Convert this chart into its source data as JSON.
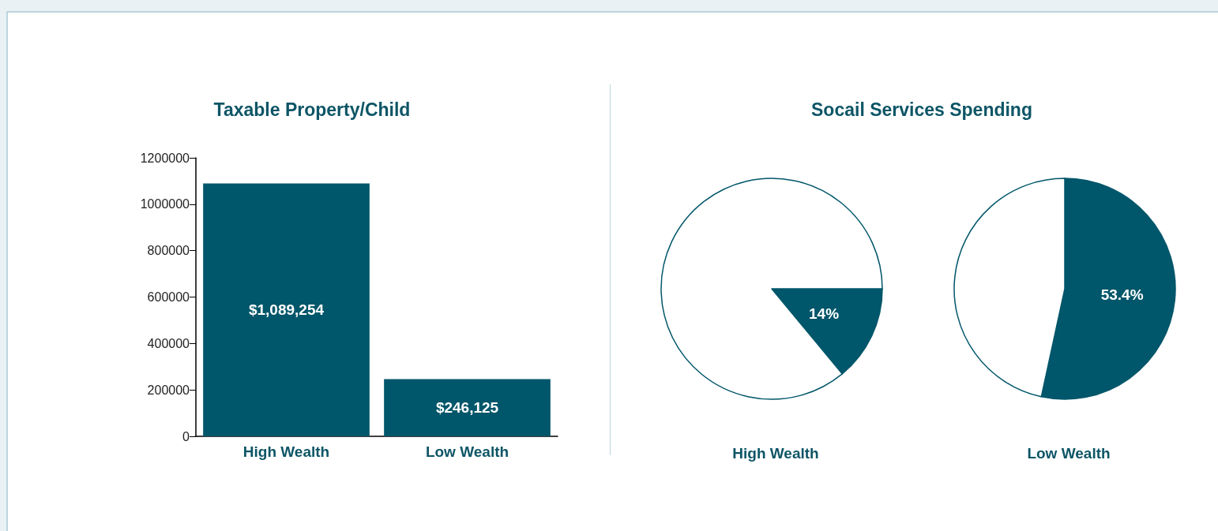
{
  "chart_data": [
    {
      "type": "bar",
      "title": "Taxable Property/Child",
      "categories": [
        "High Wealth",
        "Low Wealth"
      ],
      "values": [
        1089254,
        246125
      ],
      "color": "#00566a",
      "value_labels": [
        "$1,089,254",
        "$246,125"
      ],
      "ylim": [
        0,
        1200000
      ],
      "yticks": [
        0,
        200000,
        400000,
        600000,
        800000,
        1000000,
        1200000
      ],
      "grid": false
    },
    {
      "type": "pie",
      "title": "Socail Services Spending",
      "xlabel": "High Wealth",
      "categories": [
        null,
        null
      ],
      "values": [
        14,
        86
      ],
      "colors": [
        "#00566a",
        "#ffffff"
      ],
      "value_labels": [
        "14%",
        null
      ]
    },
    {
      "type": "pie",
      "xlabel": "Low Wealth",
      "categories": [
        null,
        null
      ],
      "values": [
        53.4,
        46.6
      ],
      "colors": [
        "#00566a",
        "#ffffff"
      ],
      "value_labels": [
        "53.4%",
        null
      ]
    }
  ]
}
